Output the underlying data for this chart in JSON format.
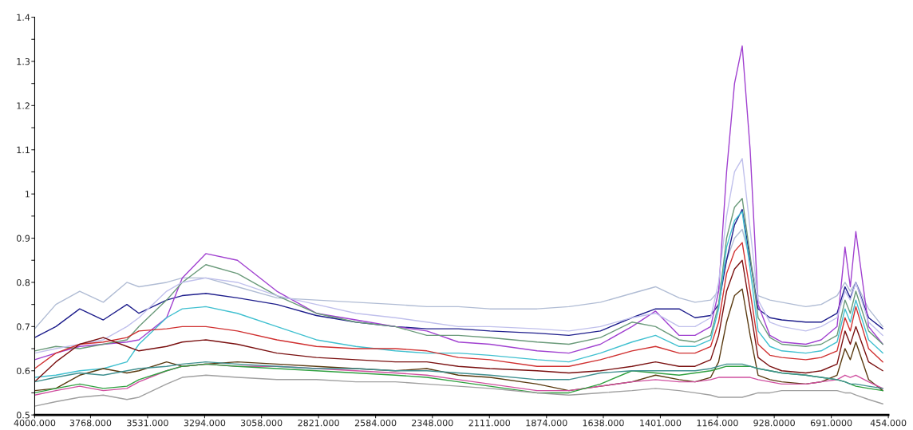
{
  "chart_data": {
    "type": "line",
    "x": [
      4000,
      3912,
      3813,
      3715,
      3617,
      3567,
      3452,
      3387,
      3289,
      3158,
      2994,
      2830,
      2666,
      2502,
      2371,
      2240,
      2109,
      1913,
      1781,
      1650,
      1519,
      1421,
      1323,
      1257,
      1192,
      1159,
      1126,
      1093,
      1061,
      1028,
      995,
      946,
      897,
      797,
      733,
      667,
      634,
      612,
      589,
      536,
      477
    ],
    "series": [
      {
        "color": "#b0bcd4",
        "values": [
          0.695,
          0.75,
          0.78,
          0.755,
          0.8,
          0.79,
          0.8,
          0.81,
          0.81,
          0.79,
          0.765,
          0.76,
          0.755,
          0.75,
          0.745,
          0.745,
          0.74,
          0.74,
          0.745,
          0.755,
          0.775,
          0.79,
          0.765,
          0.755,
          0.76,
          0.78,
          0.85,
          0.9,
          0.92,
          0.85,
          0.77,
          0.76,
          0.755,
          0.745,
          0.75,
          0.77,
          0.8,
          0.78,
          0.8,
          0.74,
          0.7
        ]
      },
      {
        "color": "#1e1e8c",
        "values": [
          0.675,
          0.7,
          0.74,
          0.715,
          0.75,
          0.73,
          0.76,
          0.77,
          0.775,
          0.765,
          0.75,
          0.725,
          0.71,
          0.7,
          0.695,
          0.695,
          0.69,
          0.685,
          0.68,
          0.69,
          0.72,
          0.74,
          0.74,
          0.72,
          0.725,
          0.75,
          0.85,
          0.93,
          0.965,
          0.85,
          0.74,
          0.72,
          0.715,
          0.71,
          0.71,
          0.73,
          0.79,
          0.765,
          0.8,
          0.72,
          0.695
        ]
      },
      {
        "color": "#a040d0",
        "values": [
          0.625,
          0.64,
          0.655,
          0.66,
          0.665,
          0.67,
          0.72,
          0.81,
          0.865,
          0.85,
          0.78,
          0.73,
          0.715,
          0.7,
          0.69,
          0.665,
          0.66,
          0.645,
          0.64,
          0.66,
          0.7,
          0.735,
          0.68,
          0.68,
          0.7,
          0.78,
          1.05,
          1.25,
          1.335,
          1.1,
          0.75,
          0.68,
          0.665,
          0.66,
          0.67,
          0.7,
          0.88,
          0.79,
          0.915,
          0.7,
          0.66
        ]
      },
      {
        "color": "#6a9a7a",
        "values": [
          0.645,
          0.655,
          0.65,
          0.66,
          0.67,
          0.7,
          0.76,
          0.8,
          0.84,
          0.82,
          0.77,
          0.73,
          0.71,
          0.7,
          0.68,
          0.68,
          0.675,
          0.665,
          0.66,
          0.675,
          0.71,
          0.7,
          0.67,
          0.665,
          0.68,
          0.75,
          0.9,
          0.97,
          0.99,
          0.86,
          0.72,
          0.675,
          0.66,
          0.655,
          0.66,
          0.68,
          0.76,
          0.73,
          0.78,
          0.69,
          0.66
        ]
      },
      {
        "color": "#c0c0ec",
        "values": [
          0.64,
          0.65,
          0.66,
          0.67,
          0.7,
          0.72,
          0.78,
          0.8,
          0.81,
          0.8,
          0.77,
          0.75,
          0.73,
          0.72,
          0.71,
          0.7,
          0.7,
          0.695,
          0.69,
          0.7,
          0.72,
          0.73,
          0.7,
          0.7,
          0.72,
          0.8,
          0.95,
          1.05,
          1.08,
          0.92,
          0.76,
          0.71,
          0.7,
          0.69,
          0.7,
          0.72,
          0.78,
          0.76,
          0.8,
          0.71,
          0.68
        ]
      },
      {
        "color": "#40c0d0",
        "values": [
          0.585,
          0.59,
          0.6,
          0.605,
          0.62,
          0.66,
          0.72,
          0.74,
          0.745,
          0.73,
          0.7,
          0.67,
          0.655,
          0.645,
          0.64,
          0.64,
          0.635,
          0.625,
          0.62,
          0.64,
          0.665,
          0.68,
          0.655,
          0.655,
          0.67,
          0.74,
          0.88,
          0.94,
          0.96,
          0.83,
          0.69,
          0.655,
          0.645,
          0.64,
          0.645,
          0.665,
          0.74,
          0.71,
          0.76,
          0.67,
          0.64
        ]
      },
      {
        "color": "#d03030",
        "values": [
          0.605,
          0.64,
          0.66,
          0.665,
          0.675,
          0.69,
          0.695,
          0.7,
          0.7,
          0.69,
          0.67,
          0.655,
          0.65,
          0.65,
          0.645,
          0.63,
          0.625,
          0.61,
          0.61,
          0.625,
          0.645,
          0.655,
          0.64,
          0.64,
          0.655,
          0.71,
          0.82,
          0.87,
          0.89,
          0.78,
          0.66,
          0.635,
          0.63,
          0.625,
          0.63,
          0.645,
          0.72,
          0.69,
          0.745,
          0.65,
          0.62
        ]
      },
      {
        "color": "#7a1010",
        "values": [
          0.575,
          0.62,
          0.66,
          0.675,
          0.655,
          0.645,
          0.655,
          0.665,
          0.67,
          0.66,
          0.64,
          0.63,
          0.625,
          0.62,
          0.62,
          0.61,
          0.605,
          0.6,
          0.595,
          0.6,
          0.61,
          0.62,
          0.61,
          0.61,
          0.625,
          0.68,
          0.78,
          0.83,
          0.85,
          0.74,
          0.63,
          0.61,
          0.6,
          0.595,
          0.6,
          0.615,
          0.69,
          0.66,
          0.7,
          0.62,
          0.6
        ]
      },
      {
        "color": "#5a3a10",
        "values": [
          0.555,
          0.56,
          0.59,
          0.605,
          0.595,
          0.6,
          0.62,
          0.61,
          0.615,
          0.62,
          0.615,
          0.61,
          0.605,
          0.6,
          0.605,
          0.59,
          0.585,
          0.57,
          0.555,
          0.565,
          0.575,
          0.59,
          0.58,
          0.575,
          0.585,
          0.62,
          0.71,
          0.77,
          0.785,
          0.68,
          0.59,
          0.58,
          0.575,
          0.57,
          0.575,
          0.59,
          0.65,
          0.625,
          0.665,
          0.58,
          0.555
        ]
      },
      {
        "color": "#d050a0",
        "values": [
          0.545,
          0.555,
          0.565,
          0.555,
          0.56,
          0.575,
          0.6,
          0.61,
          0.615,
          0.61,
          0.61,
          0.605,
          0.6,
          0.595,
          0.59,
          0.58,
          0.57,
          0.555,
          0.555,
          0.565,
          0.575,
          0.58,
          0.575,
          0.575,
          0.58,
          0.585,
          0.585,
          0.585,
          0.585,
          0.585,
          0.58,
          0.575,
          0.57,
          0.57,
          0.575,
          0.58,
          0.59,
          0.585,
          0.59,
          0.575,
          0.56
        ]
      },
      {
        "color": "#30a040",
        "values": [
          0.55,
          0.56,
          0.57,
          0.56,
          0.565,
          0.58,
          0.6,
          0.61,
          0.615,
          0.61,
          0.605,
          0.6,
          0.595,
          0.59,
          0.585,
          0.575,
          0.565,
          0.55,
          0.55,
          0.57,
          0.6,
          0.595,
          0.59,
          0.595,
          0.6,
          0.605,
          0.61,
          0.61,
          0.61,
          0.61,
          0.605,
          0.6,
          0.595,
          0.59,
          0.585,
          0.58,
          0.575,
          0.57,
          0.565,
          0.56,
          0.555
        ]
      },
      {
        "color": "#409090",
        "values": [
          0.575,
          0.585,
          0.595,
          0.59,
          0.6,
          0.605,
          0.61,
          0.615,
          0.62,
          0.615,
          0.61,
          0.605,
          0.605,
          0.6,
          0.6,
          0.595,
          0.59,
          0.58,
          0.58,
          0.595,
          0.6,
          0.6,
          0.6,
          0.6,
          0.605,
          0.61,
          0.615,
          0.615,
          0.615,
          0.61,
          0.605,
          0.6,
          0.595,
          0.59,
          0.585,
          0.58,
          0.575,
          0.57,
          0.57,
          0.565,
          0.56
        ]
      },
      {
        "color": "#a0a0a0",
        "values": [
          0.52,
          0.53,
          0.54,
          0.545,
          0.535,
          0.54,
          0.57,
          0.585,
          0.59,
          0.585,
          0.58,
          0.58,
          0.575,
          0.575,
          0.57,
          0.565,
          0.56,
          0.55,
          0.545,
          0.55,
          0.555,
          0.56,
          0.555,
          0.55,
          0.545,
          0.54,
          0.54,
          0.54,
          0.54,
          0.545,
          0.55,
          0.55,
          0.555,
          0.555,
          0.555,
          0.555,
          0.55,
          0.55,
          0.545,
          0.535,
          0.525
        ]
      }
    ],
    "xlim": [
      4000,
      454
    ],
    "xticks": [
      {
        "value": 4000,
        "label": "4000.000"
      },
      {
        "value": 3768,
        "label": "3768.000"
      },
      {
        "value": 3531,
        "label": "3531.000"
      },
      {
        "value": 3294,
        "label": "3294.000"
      },
      {
        "value": 3058,
        "label": "3058.000"
      },
      {
        "value": 2821,
        "label": "2821.000"
      },
      {
        "value": 2584,
        "label": "2584.000"
      },
      {
        "value": 2348,
        "label": "2348.000"
      },
      {
        "value": 2111,
        "label": "2111.000"
      },
      {
        "value": 1874,
        "label": "1874.000"
      },
      {
        "value": 1638,
        "label": "1638.000"
      },
      {
        "value": 1401,
        "label": "1401.000"
      },
      {
        "value": 1164,
        "label": "1164.000"
      },
      {
        "value": 928,
        "label": "928.0000"
      },
      {
        "value": 691,
        "label": "691.0000"
      },
      {
        "value": 454,
        "label": "454.000"
      }
    ],
    "ylim": [
      0.5,
      1.4
    ],
    "yticks": [
      0.5,
      {
        "value": 0.55,
        "label": null
      },
      0.6,
      {
        "value": 0.65,
        "label": null
      },
      0.7,
      {
        "value": 0.75,
        "label": null
      },
      0.8,
      {
        "value": 0.85,
        "label": null
      },
      0.9,
      {
        "value": 0.95,
        "label": null
      },
      1,
      {
        "value": 1.05,
        "label": null
      },
      1.1,
      {
        "value": 1.15,
        "label": null
      },
      1.2,
      {
        "value": 1.25,
        "label": null
      },
      1.3,
      {
        "value": 1.35,
        "label": null
      },
      1.4
    ],
    "grid": false,
    "legend": false
  }
}
